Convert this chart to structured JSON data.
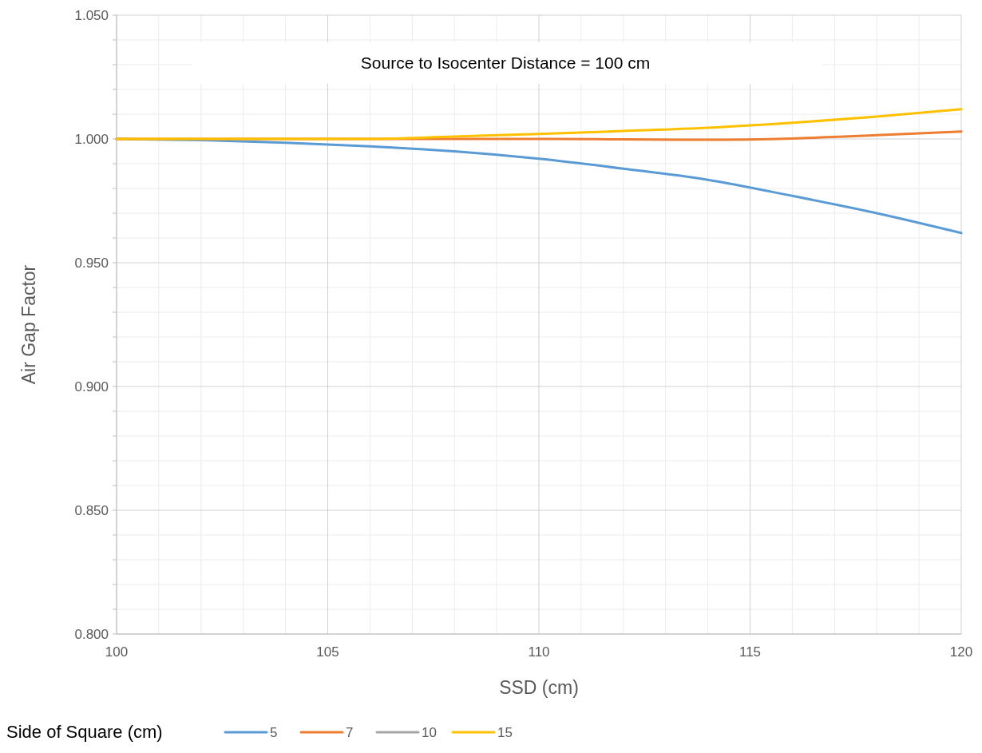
{
  "chart_data": {
    "type": "line",
    "title": "Source to Isocenter Distance = 100 cm",
    "xlabel": "SSD (cm)",
    "ylabel": "Air Gap Factor",
    "legend_title": "Side of Square (cm)",
    "x": [
      100,
      102,
      104,
      106,
      108,
      110,
      112,
      114,
      116,
      118,
      120
    ],
    "series": [
      {
        "name": "5",
        "color": "#5b9bd5",
        "values": [
          1.0,
          0.9995,
          0.9985,
          0.997,
          0.995,
          0.992,
          0.988,
          0.9835,
          0.977,
          0.97,
          0.962
        ]
      },
      {
        "name": "7",
        "color": "#ed7d31",
        "values": [
          1.0,
          1.0,
          1.0,
          1.0,
          1.0,
          1.0,
          0.9998,
          0.9997,
          1.0002,
          1.0015,
          1.003
        ]
      },
      {
        "name": "10",
        "color": "#a5a5a5",
        "values": [
          null,
          null,
          null,
          null,
          null,
          null,
          null,
          null,
          null,
          null,
          null
        ]
      },
      {
        "name": "15",
        "color": "#ffc000",
        "values": [
          1.0,
          1.0,
          1.0,
          1.0,
          1.001,
          1.002,
          1.0032,
          1.0045,
          1.0065,
          1.009,
          1.012
        ]
      }
    ],
    "xlim": [
      100,
      120
    ],
    "xticks": [
      100,
      105,
      110,
      115,
      120
    ],
    "ylim": [
      0.8,
      1.05
    ],
    "yticks": [
      {
        "value": 0.8,
        "label": "0.800"
      },
      {
        "value": 0.85,
        "label": "0.850"
      },
      {
        "value": 0.9,
        "label": "0.900"
      },
      {
        "value": 0.95,
        "label": "0.950"
      },
      {
        "value": 1.0,
        "label": "1.000"
      },
      {
        "value": 1.05,
        "label": "1.050"
      }
    ],
    "grid": true,
    "legend": "bottom",
    "marker": "none",
    "line_style": "solid"
  }
}
